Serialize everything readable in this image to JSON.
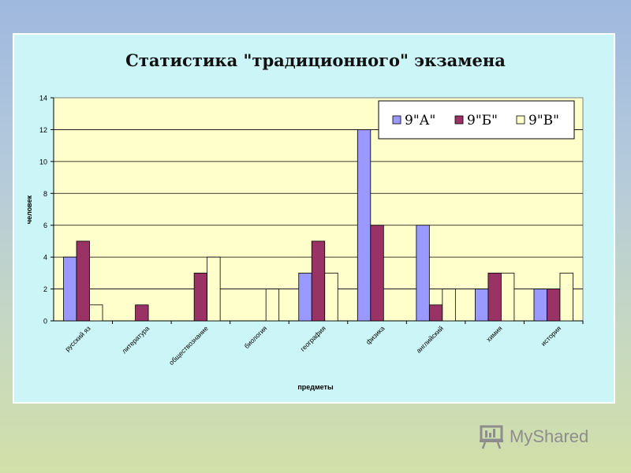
{
  "chart_data": {
    "type": "bar",
    "title": "Статистика \"традиционного\" экзамена",
    "xlabel": "предметы",
    "ylabel": "человек",
    "ylim": [
      0,
      14
    ],
    "yticks": [
      0,
      2,
      4,
      6,
      8,
      10,
      12,
      14
    ],
    "grid": true,
    "legend_position": "top-right",
    "categories": [
      "русский яз",
      "литература",
      "обществознание",
      "биология",
      "география",
      "физика",
      "английский",
      "химия",
      "история"
    ],
    "series": [
      {
        "name": "9\"А\"",
        "color": "#9999ff",
        "values": [
          4,
          0,
          0,
          0,
          3,
          12,
          6,
          2,
          2
        ]
      },
      {
        "name": "9\"Б\"",
        "color": "#993366",
        "values": [
          5,
          1,
          3,
          0,
          5,
          6,
          1,
          3,
          2
        ]
      },
      {
        "name": "9\"В\"",
        "color": "#ffffcc",
        "values": [
          1,
          0,
          4,
          2,
          3,
          0,
          2,
          3,
          3
        ]
      }
    ],
    "plot_background": "#ffffcc"
  },
  "watermark": {
    "text": "MyShared",
    "icon": "presentation-board-icon"
  }
}
